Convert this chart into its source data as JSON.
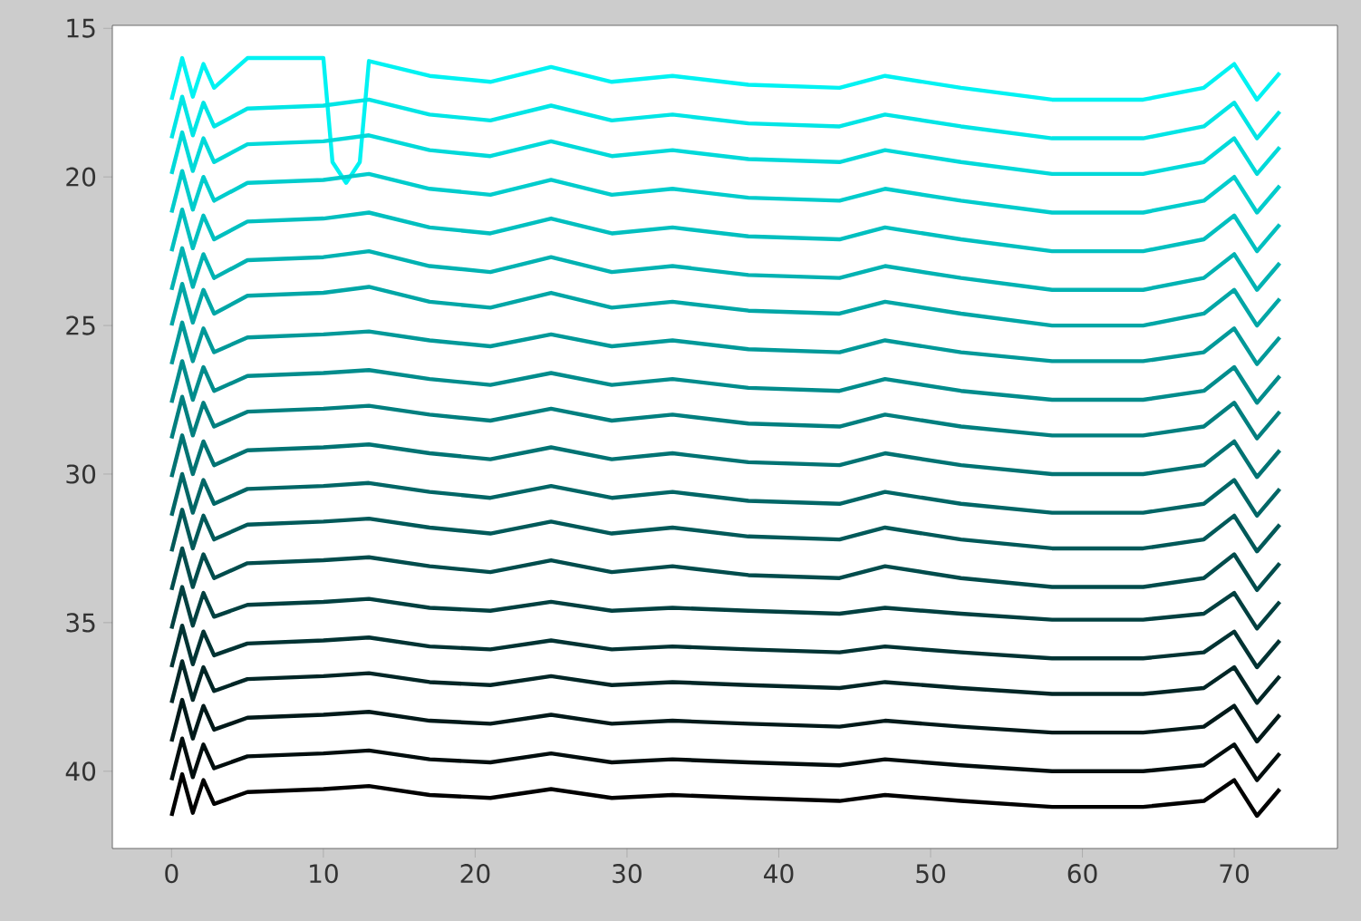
{
  "chart_data": {
    "type": "line",
    "grid": false,
    "xlim": [
      -3.9,
      76.8
    ],
    "ylim": [
      42.6,
      14.9
    ],
    "xticks": [
      0,
      10,
      20,
      30,
      40,
      50,
      60,
      70
    ],
    "yticks": [
      15,
      20,
      25,
      30,
      35,
      40
    ],
    "x": [
      0,
      0.7,
      1.4,
      2.1,
      2.8,
      5,
      10,
      13,
      17,
      21,
      25,
      29,
      33,
      38,
      44,
      47,
      52,
      58,
      64,
      68,
      70,
      71.5,
      73
    ],
    "series": [
      {
        "color": "#00f2f2",
        "x": [
          0,
          0.7,
          1.4,
          2.1,
          2.8,
          5,
          10,
          10.6,
          11.5,
          12.4,
          13,
          17,
          21,
          25,
          29,
          33,
          38,
          44,
          47,
          52,
          58,
          64,
          68,
          70,
          71.5,
          73
        ],
        "values": [
          17.4,
          16.0,
          17.3,
          16.2,
          17.0,
          16.0,
          16.0,
          19.5,
          20.2,
          19.5,
          16.1,
          16.6,
          16.8,
          16.3,
          16.8,
          16.6,
          16.9,
          17.0,
          16.6,
          17.0,
          17.4,
          17.4,
          17.0,
          16.2,
          17.4,
          16.5
        ]
      },
      {
        "color": "#00e5e5",
        "values": [
          18.7,
          17.3,
          18.6,
          17.5,
          18.3,
          17.7,
          17.6,
          17.4,
          17.9,
          18.1,
          17.6,
          18.1,
          17.9,
          18.2,
          18.3,
          17.9,
          18.3,
          18.7,
          18.7,
          18.3,
          17.5,
          18.7,
          17.8
        ]
      },
      {
        "color": "#00d9d9",
        "values": [
          19.9,
          18.5,
          19.8,
          18.7,
          19.5,
          18.9,
          18.8,
          18.6,
          19.1,
          19.3,
          18.8,
          19.3,
          19.1,
          19.4,
          19.5,
          19.1,
          19.5,
          19.9,
          19.9,
          19.5,
          18.7,
          19.9,
          19.0
        ]
      },
      {
        "color": "#00cccc",
        "values": [
          21.2,
          19.8,
          21.1,
          20.0,
          20.8,
          20.2,
          20.1,
          19.9,
          20.4,
          20.6,
          20.1,
          20.6,
          20.4,
          20.7,
          20.8,
          20.4,
          20.8,
          21.2,
          21.2,
          20.8,
          20.0,
          21.2,
          20.3
        ]
      },
      {
        "color": "#00bfbf",
        "values": [
          22.5,
          21.1,
          22.4,
          21.3,
          22.1,
          21.5,
          21.4,
          21.2,
          21.7,
          21.9,
          21.4,
          21.9,
          21.7,
          22.0,
          22.1,
          21.7,
          22.1,
          22.5,
          22.5,
          22.1,
          21.3,
          22.5,
          21.6
        ]
      },
      {
        "color": "#00b2b2",
        "values": [
          23.8,
          22.4,
          23.7,
          22.6,
          23.4,
          22.8,
          22.7,
          22.5,
          23.0,
          23.2,
          22.7,
          23.2,
          23.0,
          23.3,
          23.4,
          23.0,
          23.4,
          23.8,
          23.8,
          23.4,
          22.6,
          23.8,
          22.9
        ]
      },
      {
        "color": "#00a6a6",
        "values": [
          25.0,
          23.6,
          24.9,
          23.8,
          24.6,
          24.0,
          23.9,
          23.7,
          24.2,
          24.4,
          23.9,
          24.4,
          24.2,
          24.5,
          24.6,
          24.2,
          24.6,
          25.0,
          25.0,
          24.6,
          23.8,
          25.0,
          24.1
        ]
      },
      {
        "color": "#009999",
        "values": [
          26.3,
          24.9,
          26.2,
          25.1,
          25.9,
          25.4,
          25.3,
          25.2,
          25.5,
          25.7,
          25.3,
          25.7,
          25.5,
          25.8,
          25.9,
          25.5,
          25.9,
          26.2,
          26.2,
          25.9,
          25.1,
          26.3,
          25.4
        ]
      },
      {
        "color": "#008c8c",
        "values": [
          27.6,
          26.2,
          27.5,
          26.4,
          27.2,
          26.7,
          26.6,
          26.5,
          26.8,
          27.0,
          26.6,
          27.0,
          26.8,
          27.1,
          27.2,
          26.8,
          27.2,
          27.5,
          27.5,
          27.2,
          26.4,
          27.6,
          26.7
        ]
      },
      {
        "color": "#007f7f",
        "values": [
          28.8,
          27.4,
          28.7,
          27.6,
          28.4,
          27.9,
          27.8,
          27.7,
          28.0,
          28.2,
          27.8,
          28.2,
          28.0,
          28.3,
          28.4,
          28.0,
          28.4,
          28.7,
          28.7,
          28.4,
          27.6,
          28.8,
          27.9
        ]
      },
      {
        "color": "#007373",
        "values": [
          30.1,
          28.7,
          30.0,
          28.9,
          29.7,
          29.2,
          29.1,
          29.0,
          29.3,
          29.5,
          29.1,
          29.5,
          29.3,
          29.6,
          29.7,
          29.3,
          29.7,
          30.0,
          30.0,
          29.7,
          28.9,
          30.1,
          29.2
        ]
      },
      {
        "color": "#006666",
        "values": [
          31.4,
          30.0,
          31.3,
          30.2,
          31.0,
          30.5,
          30.4,
          30.3,
          30.6,
          30.8,
          30.4,
          30.8,
          30.6,
          30.9,
          31.0,
          30.6,
          31.0,
          31.3,
          31.3,
          31.0,
          30.2,
          31.4,
          30.5
        ]
      },
      {
        "color": "#005959",
        "values": [
          32.6,
          31.2,
          32.5,
          31.4,
          32.2,
          31.7,
          31.6,
          31.5,
          31.8,
          32.0,
          31.6,
          32.0,
          31.8,
          32.1,
          32.2,
          31.8,
          32.2,
          32.5,
          32.5,
          32.2,
          31.4,
          32.6,
          31.7
        ]
      },
      {
        "color": "#004c4c",
        "values": [
          33.9,
          32.5,
          33.8,
          32.7,
          33.5,
          33.0,
          32.9,
          32.8,
          33.1,
          33.3,
          32.9,
          33.3,
          33.1,
          33.4,
          33.5,
          33.1,
          33.5,
          33.8,
          33.8,
          33.5,
          32.7,
          33.9,
          33.0
        ]
      },
      {
        "color": "#004040",
        "values": [
          35.2,
          33.8,
          35.1,
          34.0,
          34.8,
          34.4,
          34.3,
          34.2,
          34.5,
          34.6,
          34.3,
          34.6,
          34.5,
          34.6,
          34.7,
          34.5,
          34.7,
          34.9,
          34.9,
          34.7,
          34.0,
          35.2,
          34.3
        ]
      },
      {
        "color": "#003333",
        "values": [
          36.5,
          35.1,
          36.4,
          35.3,
          36.1,
          35.7,
          35.6,
          35.5,
          35.8,
          35.9,
          35.6,
          35.9,
          35.8,
          35.9,
          36.0,
          35.8,
          36.0,
          36.2,
          36.2,
          36.0,
          35.3,
          36.5,
          35.6
        ]
      },
      {
        "color": "#002626",
        "values": [
          37.7,
          36.3,
          37.6,
          36.5,
          37.3,
          36.9,
          36.8,
          36.7,
          37.0,
          37.1,
          36.8,
          37.1,
          37.0,
          37.1,
          37.2,
          37.0,
          37.2,
          37.4,
          37.4,
          37.2,
          36.5,
          37.7,
          36.8
        ]
      },
      {
        "color": "#001919",
        "values": [
          39.0,
          37.6,
          38.9,
          37.8,
          38.6,
          38.2,
          38.1,
          38.0,
          38.3,
          38.4,
          38.1,
          38.4,
          38.3,
          38.4,
          38.5,
          38.3,
          38.5,
          38.7,
          38.7,
          38.5,
          37.8,
          39.0,
          38.1
        ]
      },
      {
        "color": "#000d0d",
        "values": [
          40.3,
          38.9,
          40.2,
          39.1,
          39.9,
          39.5,
          39.4,
          39.3,
          39.6,
          39.7,
          39.4,
          39.7,
          39.6,
          39.7,
          39.8,
          39.6,
          39.8,
          40.0,
          40.0,
          39.8,
          39.1,
          40.3,
          39.4
        ]
      },
      {
        "color": "#000000",
        "values": [
          41.5,
          40.1,
          41.4,
          40.3,
          41.1,
          40.7,
          40.6,
          40.5,
          40.8,
          40.9,
          40.6,
          40.9,
          40.8,
          40.9,
          41.0,
          40.8,
          41.0,
          41.2,
          41.2,
          41.0,
          40.3,
          41.5,
          40.6
        ]
      }
    ]
  }
}
